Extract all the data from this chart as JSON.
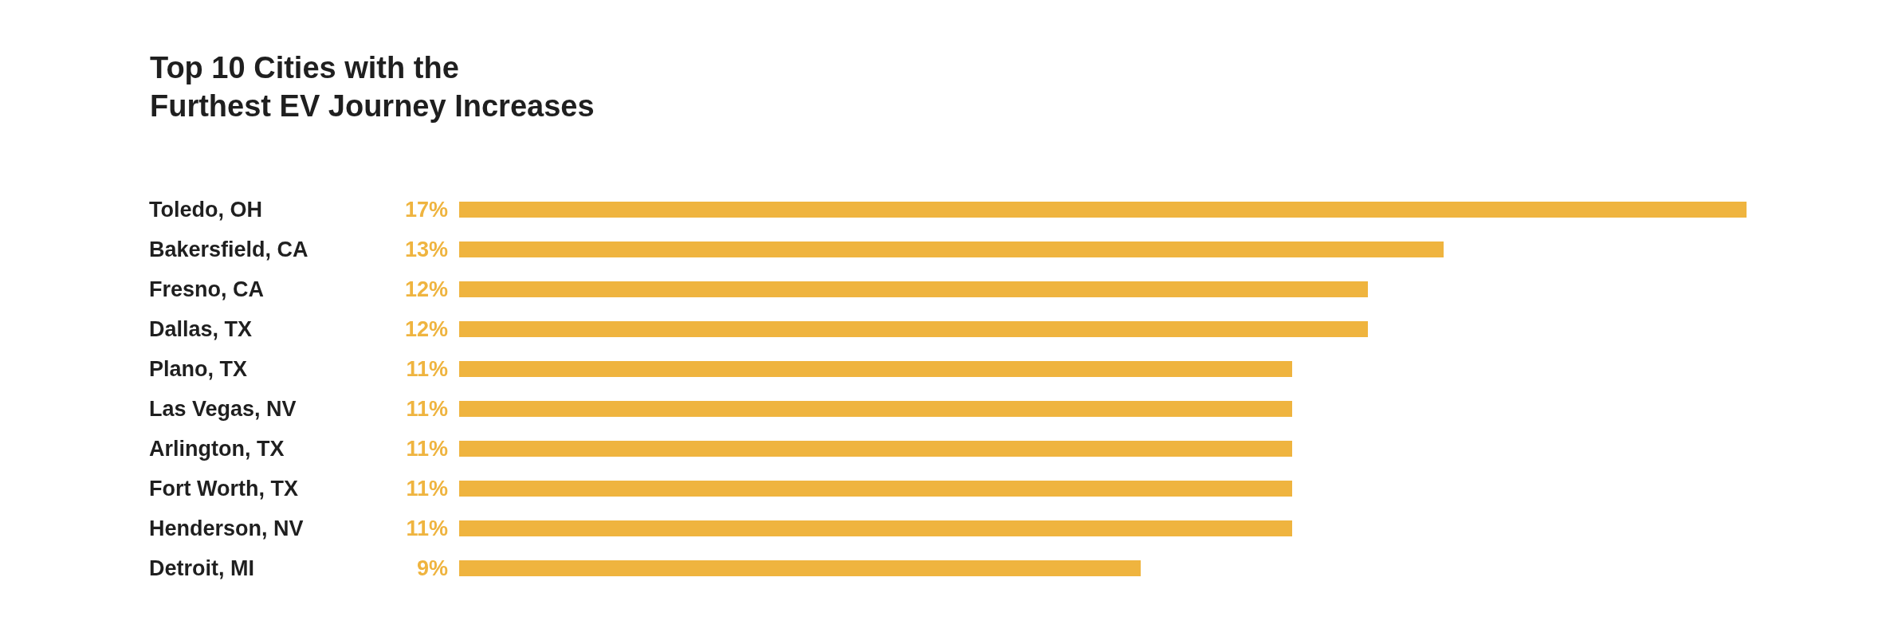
{
  "chart_data": {
    "type": "bar",
    "orientation": "horizontal",
    "title": "Top 10 Cities with the\nFurthest EV Journey Increases",
    "categories": [
      "Toledo, OH",
      "Bakersfield, CA",
      "Fresno, CA",
      "Dallas, TX",
      "Plano, TX",
      "Las Vegas, NV",
      "Arlington, TX",
      "Fort Worth, TX",
      "Henderson, NV",
      "Detroit, MI"
    ],
    "values": [
      17,
      13,
      12,
      12,
      11,
      11,
      11,
      11,
      11,
      9
    ],
    "value_labels": [
      "17%",
      "13%",
      "12%",
      "12%",
      "11%",
      "11%",
      "11%",
      "11%",
      "11%",
      "9%"
    ],
    "color": "#efb43f"
  }
}
